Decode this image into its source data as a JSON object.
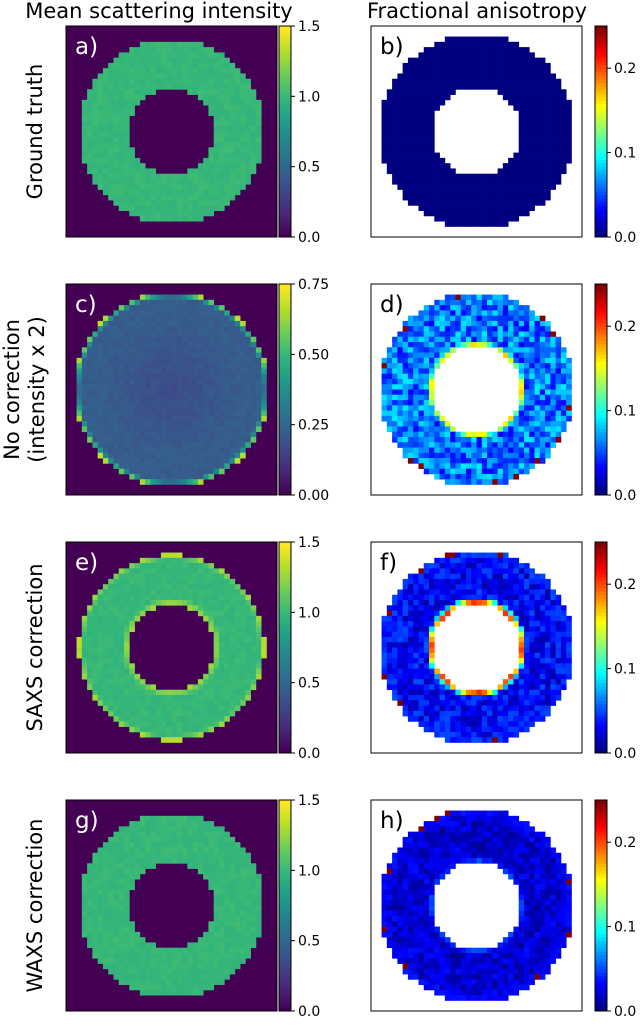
{
  "column_titles": [
    "Mean scattering intensity",
    "Fractional anisotropy"
  ],
  "row_labels": [
    [
      "Ground truth"
    ],
    [
      "No correction",
      "(intensity x 2)"
    ],
    [
      "SAXS correction"
    ],
    [
      "WAXS correction"
    ]
  ],
  "panel_letters": [
    "a)",
    "b)",
    "c)",
    "d)",
    "e)",
    "f)",
    "g)",
    "h)"
  ],
  "colors": {
    "viridis_background": "#440154",
    "viridis_ring": "#35b779",
    "jet_low": "#00008f",
    "panel_label_on_dark": "#ffffff",
    "panel_label_on_light": "#000000"
  },
  "chart_data": [
    {
      "type": "heatmap",
      "panel": "a)",
      "quantity": "mean scattering intensity",
      "colormap": "viridis",
      "clim": [
        0,
        1.5
      ],
      "colorbar_ticks": [
        "0.0",
        "0.5",
        "1.0",
        "1.5"
      ],
      "structure": "annulus",
      "outer_radius_frac": 0.87,
      "inner_radius_frac": 0.4,
      "ring_value": 1.0,
      "background_value": 0.0,
      "edge_enhancement": 0.0
    },
    {
      "type": "heatmap",
      "panel": "b)",
      "quantity": "fractional anisotropy",
      "colormap": "jet",
      "clim": [
        0,
        0.25
      ],
      "colorbar_ticks": [
        "0.0",
        "0.1",
        "0.2"
      ],
      "structure": "annulus",
      "outer_radius_frac": 0.92,
      "inner_radius_frac": 0.42,
      "ring_value": 0.0,
      "noise": 0.0,
      "inner_edge_value": 0.0,
      "outer_edge_value": 0.0
    },
    {
      "type": "heatmap",
      "panel": "c)",
      "quantity": "mean scattering intensity",
      "colormap": "viridis",
      "clim": [
        0,
        0.75
      ],
      "colorbar_ticks": [
        "0.00",
        "0.25",
        "0.50",
        "0.75"
      ],
      "structure": "disk",
      "outer_radius_frac": 0.92,
      "inner_radius_frac": 0.0,
      "ring_value": 0.22,
      "center_value": 0.17,
      "background_value": 0.0,
      "edge_enhancement": 0.45
    },
    {
      "type": "heatmap",
      "panel": "d)",
      "quantity": "fractional anisotropy",
      "colormap": "jet",
      "clim": [
        0,
        0.25
      ],
      "colorbar_ticks": [
        "0.0",
        "0.1",
        "0.2"
      ],
      "structure": "annulus",
      "outer_radius_frac": 0.92,
      "inner_radius_frac": 0.42,
      "ring_value": 0.06,
      "noise": 0.03,
      "inner_edge_value": 0.17,
      "outer_edge_value": 0.05
    },
    {
      "type": "heatmap",
      "panel": "e)",
      "quantity": "mean scattering intensity",
      "colormap": "viridis",
      "clim": [
        0,
        1.5
      ],
      "colorbar_ticks": [
        "0.0",
        "0.5",
        "1.0",
        "1.5"
      ],
      "structure": "annulus",
      "outer_radius_frac": 0.88,
      "inner_radius_frac": 0.4,
      "ring_value": 1.0,
      "background_value": 0.0,
      "edge_enhancement": 0.35
    },
    {
      "type": "heatmap",
      "panel": "f)",
      "quantity": "fractional anisotropy",
      "colormap": "jet",
      "clim": [
        0,
        0.25
      ],
      "colorbar_ticks": [
        "0.0",
        "0.1",
        "0.2"
      ],
      "structure": "annulus",
      "outer_radius_frac": 0.92,
      "inner_radius_frac": 0.42,
      "ring_value": 0.03,
      "noise": 0.02,
      "inner_edge_value": 0.22,
      "outer_edge_value": 0.04
    },
    {
      "type": "heatmap",
      "panel": "g)",
      "quantity": "mean scattering intensity",
      "colormap": "viridis",
      "clim": [
        0,
        1.5
      ],
      "colorbar_ticks": [
        "0.0",
        "0.5",
        "1.0",
        "1.5"
      ],
      "structure": "annulus",
      "outer_radius_frac": 0.87,
      "inner_radius_frac": 0.4,
      "ring_value": 1.0,
      "background_value": 0.0,
      "edge_enhancement": 0.0
    },
    {
      "type": "heatmap",
      "panel": "h)",
      "quantity": "fractional anisotropy",
      "colormap": "jet",
      "clim": [
        0,
        0.25
      ],
      "colorbar_ticks": [
        "0.0",
        "0.1",
        "0.2"
      ],
      "structure": "annulus",
      "outer_radius_frac": 0.92,
      "inner_radius_frac": 0.42,
      "ring_value": 0.02,
      "noise": 0.015,
      "inner_edge_value": 0.05,
      "outer_edge_value": 0.03
    }
  ]
}
